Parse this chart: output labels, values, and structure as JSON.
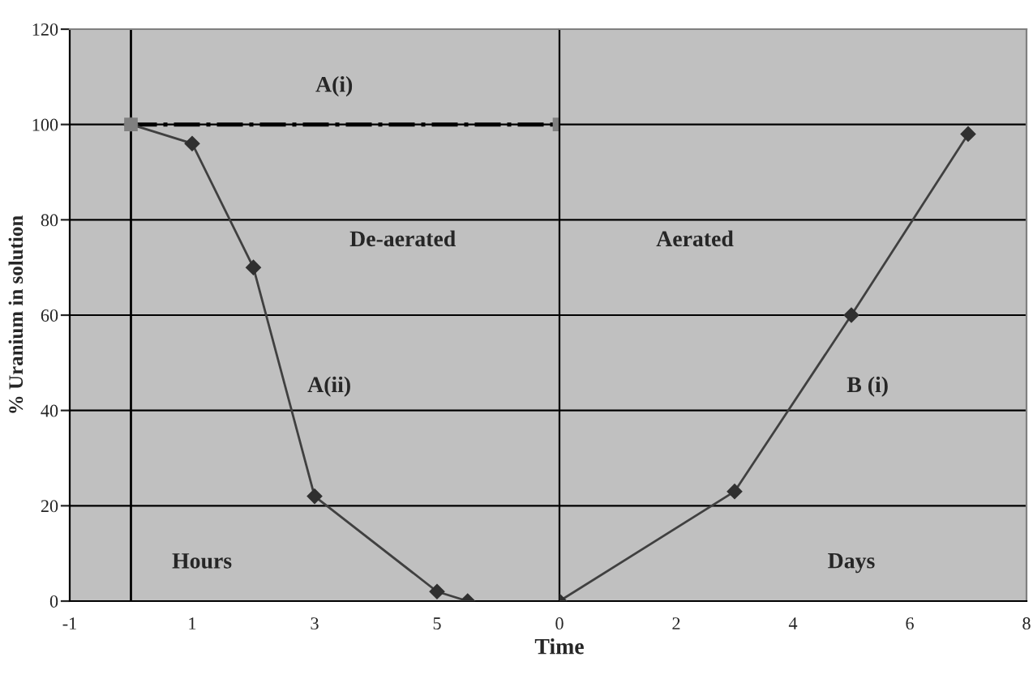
{
  "chart_data": [
    {
      "type": "line",
      "ylabel": "% Uranium in solution",
      "xlim": [
        -1,
        7
      ],
      "xticks": [
        -1,
        1,
        3,
        5
      ],
      "ylim": [
        0,
        120
      ],
      "yticks": [
        0,
        20,
        40,
        60,
        80,
        100,
        120
      ],
      "grid": "y",
      "ref_lines": [
        {
          "axis": "x",
          "value": 0,
          "color": "#000000"
        }
      ],
      "series": [
        {
          "x": [
            0,
            7
          ],
          "values": [
            100,
            100
          ],
          "color": "#000000",
          "line_style": "dashdot",
          "marker": "square"
        },
        {
          "x": [
            0,
            1,
            2,
            3,
            5,
            5.5
          ],
          "values": [
            100,
            96,
            70,
            22,
            2,
            0
          ],
          "color": "#404040",
          "line_style": "solid",
          "marker": "diamond"
        }
      ],
      "annotations": [
        "A(i)",
        "De-aerated",
        "A(ii)",
        "Hours"
      ]
    },
    {
      "type": "line",
      "xlabel": "Time",
      "xlim": [
        0,
        8
      ],
      "xticks": [
        0,
        2,
        4,
        6,
        8
      ],
      "ylim": [
        0,
        120
      ],
      "yticks": [
        0,
        20,
        40,
        60,
        80,
        100,
        120
      ],
      "grid": "y",
      "tick_labels": "x",
      "series": [
        {
          "x": [
            0,
            3,
            5,
            7
          ],
          "values": [
            0,
            23,
            60,
            98
          ],
          "color": "#404040",
          "line_style": "solid",
          "marker": "diamond"
        }
      ],
      "annotations": [
        "Aerated",
        "B (i)",
        "Days"
      ]
    }
  ]
}
